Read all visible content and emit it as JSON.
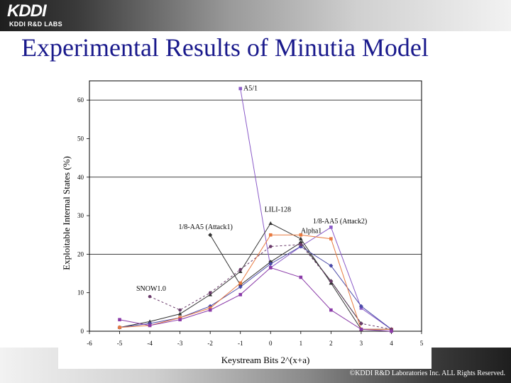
{
  "logo": {
    "name": "KDDI",
    "sub": "KDDI R&D LABS"
  },
  "slide": {
    "title": "Experimental Results of Minutia Model"
  },
  "footer": {
    "copyright": "©KDDI R&D Laboratories Inc. ALL Rights Reserved."
  },
  "colors": {
    "title": "#1a1a8c"
  },
  "chart_data": {
    "type": "line",
    "xlabel": "Keystream Bits 2^(x+a)",
    "ylabel": "Exploitable Internal States (%)",
    "xlim": [
      -6,
      5
    ],
    "ylim": [
      0,
      65
    ],
    "xticks": [
      -6,
      -5,
      -4,
      -3,
      -2,
      -1,
      0,
      1,
      2,
      3,
      4,
      5
    ],
    "yticks": [
      0,
      10,
      20,
      30,
      40,
      50,
      60
    ],
    "grid_y": [
      20,
      40,
      60
    ],
    "series": [
      {
        "name": "A5/1",
        "color": "#8a5ac8",
        "marker": "square",
        "dash": "",
        "points": [
          [
            -1,
            63
          ],
          [
            0,
            16.5
          ],
          [
            1,
            22
          ],
          [
            2,
            27
          ],
          [
            3,
            6
          ],
          [
            4,
            0.5
          ]
        ]
      },
      {
        "name": "LILI-128",
        "color": "#333333",
        "marker": "triangle",
        "dash": "",
        "points": [
          [
            -5,
            1
          ],
          [
            -4,
            2.5
          ],
          [
            -3,
            4.5
          ],
          [
            -2,
            9.5
          ],
          [
            -1,
            15.5
          ],
          [
            0,
            28
          ],
          [
            1,
            24
          ],
          [
            2,
            12.5
          ],
          [
            3,
            0.5
          ],
          [
            4,
            0.5
          ]
        ]
      },
      {
        "name": "1/8-AA5 (Attack1)",
        "color": "#333333",
        "marker": "diamond",
        "dash": "",
        "points": [
          [
            -2,
            25
          ],
          [
            -1,
            12
          ],
          [
            0,
            18
          ],
          [
            1,
            23
          ],
          [
            2,
            13
          ],
          [
            3,
            2
          ]
        ]
      },
      {
        "name": "1/8-AA5 (Attack2)",
        "color": "#4a4aa8",
        "marker": "diamond",
        "dash": "",
        "points": [
          [
            -5,
            1
          ],
          [
            -4,
            2
          ],
          [
            -3,
            3.5
          ],
          [
            -2,
            6.5
          ],
          [
            -1,
            11.5
          ],
          [
            0,
            17.5
          ],
          [
            1,
            22
          ],
          [
            2,
            17
          ],
          [
            3,
            6.5
          ],
          [
            4,
            0.5
          ]
        ]
      },
      {
        "name": "Alpha1",
        "color": "#e87a40",
        "marker": "square",
        "dash": "",
        "points": [
          [
            -5,
            1
          ],
          [
            -4,
            1.5
          ],
          [
            -3,
            3.5
          ],
          [
            -2,
            6
          ],
          [
            -1,
            12.5
          ],
          [
            0,
            25
          ],
          [
            1,
            25
          ],
          [
            2,
            24
          ],
          [
            3,
            0.5
          ],
          [
            4,
            0.5
          ]
        ]
      },
      {
        "name": "SNOW1.0",
        "color": "#6a3a6a",
        "marker": "circle",
        "dash": "3,3",
        "points": [
          [
            -4,
            9
          ],
          [
            -3,
            5.5
          ],
          [
            -2,
            10
          ],
          [
            -1,
            16
          ],
          [
            0,
            22
          ],
          [
            1,
            22.5
          ],
          [
            2,
            13
          ],
          [
            3,
            2
          ],
          [
            4,
            0.5
          ]
        ]
      },
      {
        "name": "",
        "color": "#8a3aa8",
        "marker": "square",
        "dash": "",
        "points": [
          [
            -5,
            3
          ],
          [
            -4,
            1.5
          ],
          [
            -3,
            3
          ],
          [
            -2,
            5.5
          ],
          [
            -1,
            9.5
          ],
          [
            0,
            16.5
          ],
          [
            1,
            14
          ],
          [
            2,
            5.5
          ],
          [
            3,
            0.5
          ],
          [
            4,
            0
          ]
        ]
      }
    ],
    "annotations": [
      {
        "text": "A5/1",
        "x": -0.9,
        "y": 62.5
      },
      {
        "text": "LILI-128",
        "x": -0.2,
        "y": 31
      },
      {
        "text": "1/8-AA5 (Attack2)",
        "x": 1.4,
        "y": 28
      },
      {
        "text": "Alpha1",
        "x": 1.0,
        "y": 25.5
      },
      {
        "text": "1/8-AA5 (Attack1)",
        "x": -3.05,
        "y": 26.5
      },
      {
        "text": "SNOW1.0",
        "x": -4.45,
        "y": 10.5
      }
    ]
  }
}
